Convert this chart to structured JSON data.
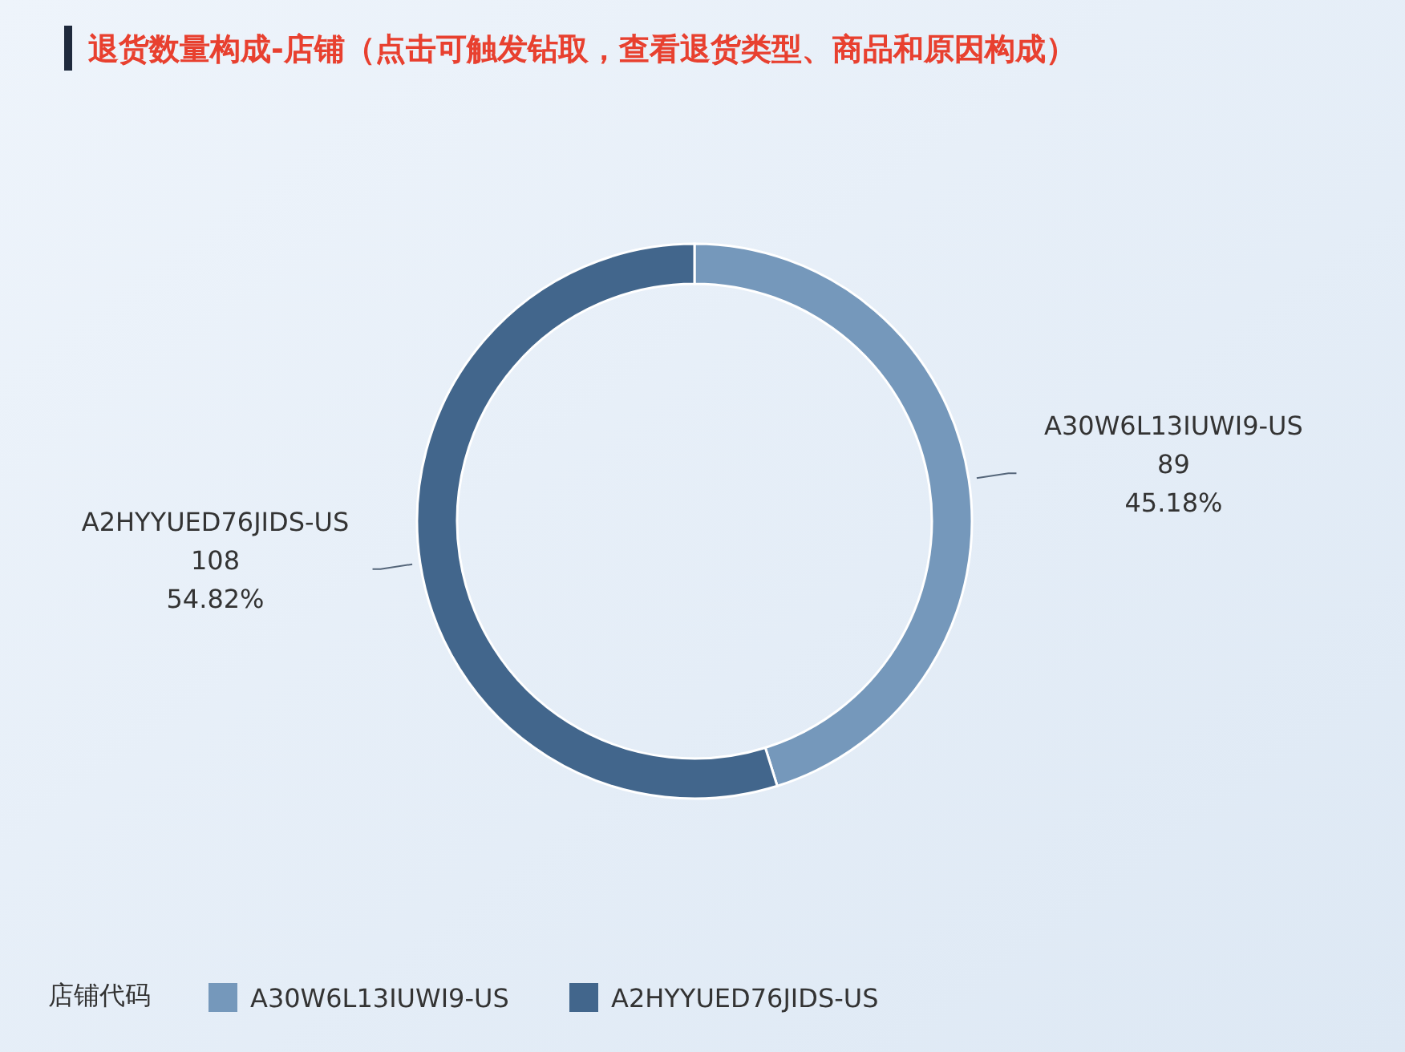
{
  "chart_data": {
    "type": "donut",
    "title": "退货数量构成-店铺（点击可触发钻取，查看退货类型、商品和原因构成）",
    "categories": [
      "A30W6L13IUWI9-US",
      "A2HYYUED76JIDS-US"
    ],
    "values": [
      89,
      108
    ],
    "colors": [
      "#7598bb",
      "#42668c"
    ],
    "value_labels": [
      "89\n45.18%",
      "108\n54.82%"
    ],
    "legend_title": "店铺代码",
    "legend": "bottom left"
  }
}
